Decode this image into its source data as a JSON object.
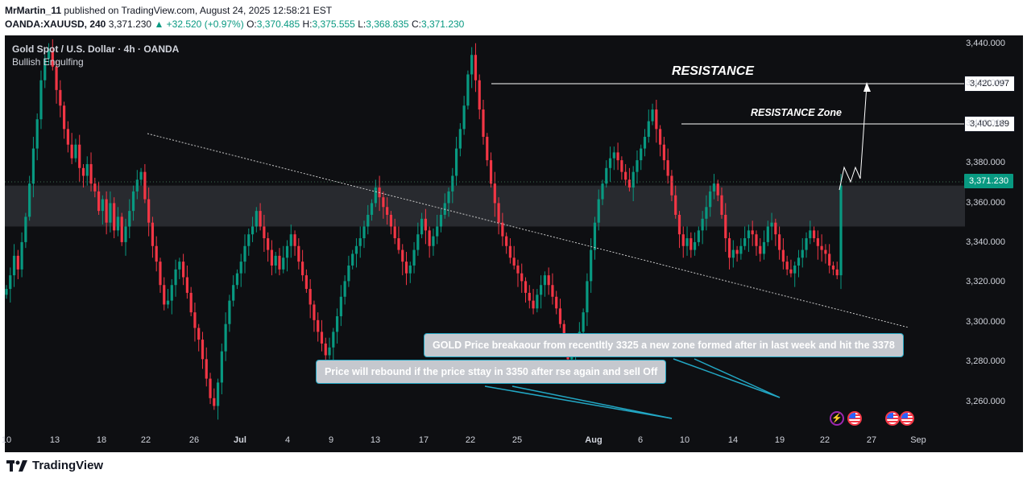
{
  "header": {
    "author": "MrMartin_11",
    "published": "published on TradingView.com, August 24, 2025 12:58:21 EST"
  },
  "ohlc": {
    "symbol": "OANDA:XAUUSD, 240",
    "last": "3,371.230",
    "change": "▲ +32.520 (+0.97%)",
    "o_label": "O:",
    "o": "3,370.485",
    "h_label": "H:",
    "h": "3,375.555",
    "l_label": "L:",
    "l": "3,368.835",
    "c_label": "C:",
    "c": "3,371.230"
  },
  "legend": {
    "title": "Gold Spot / U.S. Dollar · 4h · OANDA",
    "indicator": "Bullish Engulfing"
  },
  "annotations": {
    "resistance": "RESISTANCE",
    "resistance_zone": "RESISTANCE Zone",
    "note_gold": "GOLD Price breakaour from recentltly 3325 a new zone formed after in last week and hit the 3378",
    "note_rebound": "Price will rebound if the price sttay in 3350 after rse again and sell Off"
  },
  "price_tags": {
    "resistance": "3,420.097",
    "zone": "3,400.189",
    "current": "3,371.230"
  },
  "y_axis": [
    "3,440.000",
    "3,420.000",
    "3,400.000",
    "3,380.000",
    "3,360.000",
    "3,340.000",
    "3,320.000",
    "3,300.000",
    "3,280.000",
    "3,260.000"
  ],
  "x_axis": [
    "10",
    "13",
    "18",
    "22",
    "26",
    "Jul",
    "4",
    "9",
    "13",
    "17",
    "22",
    "25",
    "Aug",
    "6",
    "10",
    "14",
    "19",
    "22",
    "27",
    "Sep"
  ],
  "footer": {
    "brand": "TradingView"
  },
  "colors": {
    "bull": "#089981",
    "bear": "#f23645",
    "background": "#0e0f12",
    "zone": "#3a3c42",
    "note_border": "#22a7c4",
    "events_bolt": "#9c27b0"
  },
  "icons": [
    "lightning-icon",
    "us-flag-icon",
    "tradingview-logo-icon"
  ],
  "chart_data": {
    "type": "candlestick",
    "ylim": [
      3245,
      3448
    ],
    "resistance_level": 3420.097,
    "resistance_zone_level": 3400.189,
    "current_price": 3371.23,
    "zone_range": [
      3350,
      3371
    ],
    "closes": [
      3318,
      3325,
      3335,
      3328,
      3342,
      3355,
      3372,
      3390,
      3405,
      3425,
      3436,
      3440,
      3432,
      3420,
      3412,
      3400,
      3392,
      3385,
      3392,
      3380,
      3376,
      3382,
      3372,
      3368,
      3358,
      3364,
      3352,
      3362,
      3348,
      3355,
      3342,
      3350,
      3358,
      3368,
      3374,
      3378,
      3364,
      3352,
      3340,
      3332,
      3320,
      3310,
      3312,
      3320,
      3328,
      3332,
      3324,
      3316,
      3306,
      3298,
      3292,
      3282,
      3272,
      3262,
      3258,
      3270,
      3286,
      3300,
      3312,
      3320,
      3326,
      3332,
      3340,
      3346,
      3350,
      3358,
      3350,
      3344,
      3338,
      3330,
      3335,
      3328,
      3334,
      3340,
      3346,
      3340,
      3332,
      3325,
      3318,
      3310,
      3302,
      3296,
      3290,
      3284,
      3288,
      3296,
      3304,
      3314,
      3322,
      3330,
      3336,
      3340,
      3344,
      3350,
      3356,
      3362,
      3370,
      3365,
      3360,
      3356,
      3350,
      3344,
      3338,
      3332,
      3326,
      3330,
      3338,
      3346,
      3354,
      3348,
      3340,
      3345,
      3350,
      3356,
      3362,
      3368,
      3376,
      3390,
      3400,
      3412,
      3428,
      3438,
      3425,
      3410,
      3396,
      3384,
      3372,
      3362,
      3352,
      3345,
      3340,
      3334,
      3330,
      3326,
      3322,
      3316,
      3312,
      3308,
      3315,
      3320,
      3325,
      3320,
      3314,
      3308,
      3300,
      3290,
      3282,
      3285,
      3290,
      3296,
      3306,
      3322,
      3338,
      3352,
      3364,
      3372,
      3380,
      3385,
      3388,
      3384,
      3378,
      3374,
      3370,
      3378,
      3384,
      3390,
      3396,
      3404,
      3410,
      3400,
      3392,
      3384,
      3376,
      3366,
      3356,
      3346,
      3340,
      3344,
      3338,
      3342,
      3348,
      3354,
      3360,
      3368,
      3372,
      3366,
      3356,
      3344,
      3334,
      3338,
      3336,
      3340,
      3344,
      3348,
      3346,
      3340,
      3336,
      3342,
      3350,
      3352,
      3346,
      3338,
      3332,
      3328,
      3326,
      3330,
      3334,
      3338,
      3344,
      3348,
      3344,
      3340,
      3338,
      3336,
      3330,
      3328,
      3325,
      3371
    ]
  }
}
